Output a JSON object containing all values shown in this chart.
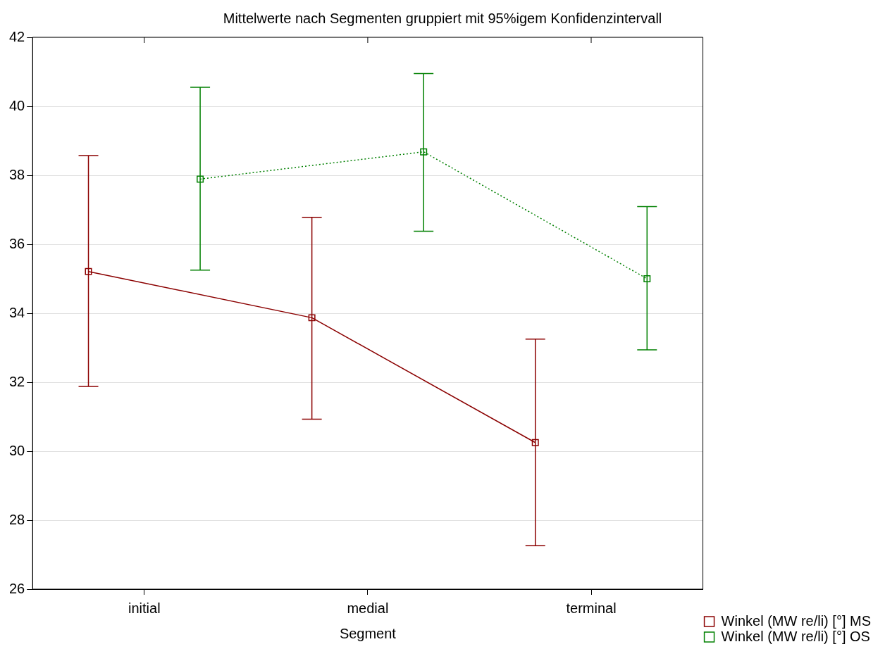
{
  "chart_data": {
    "type": "line",
    "title": "Mittelwerte nach Segmenten gruppiert mit 95%igem Konfidenzintervall",
    "xlabel": "Segment",
    "categories": [
      "initial",
      "medial",
      "terminal"
    ],
    "series": [
      {
        "name": "Winkel (MW re/li) [°] MS",
        "color": "#8b0000",
        "line_style": "solid",
        "values": [
          35.21,
          33.87,
          30.25
        ],
        "errors": [
          [
            31.88,
            38.57
          ],
          [
            30.93,
            36.78
          ],
          [
            27.26,
            33.25
          ]
        ]
      },
      {
        "name": "Winkel (MW re/li) [°] OS",
        "color": "#008000",
        "line_style": "dotted",
        "values": [
          37.89,
          38.68,
          35.0
        ],
        "errors": [
          [
            35.25,
            40.55
          ],
          [
            36.38,
            40.95
          ],
          [
            32.94,
            37.09
          ]
        ]
      }
    ],
    "ylim": [
      26,
      42
    ],
    "yticks": [
      26,
      28,
      30,
      32,
      34,
      36,
      38,
      40,
      42
    ],
    "grid": "y",
    "legend": "bottom right",
    "marker": "square"
  }
}
